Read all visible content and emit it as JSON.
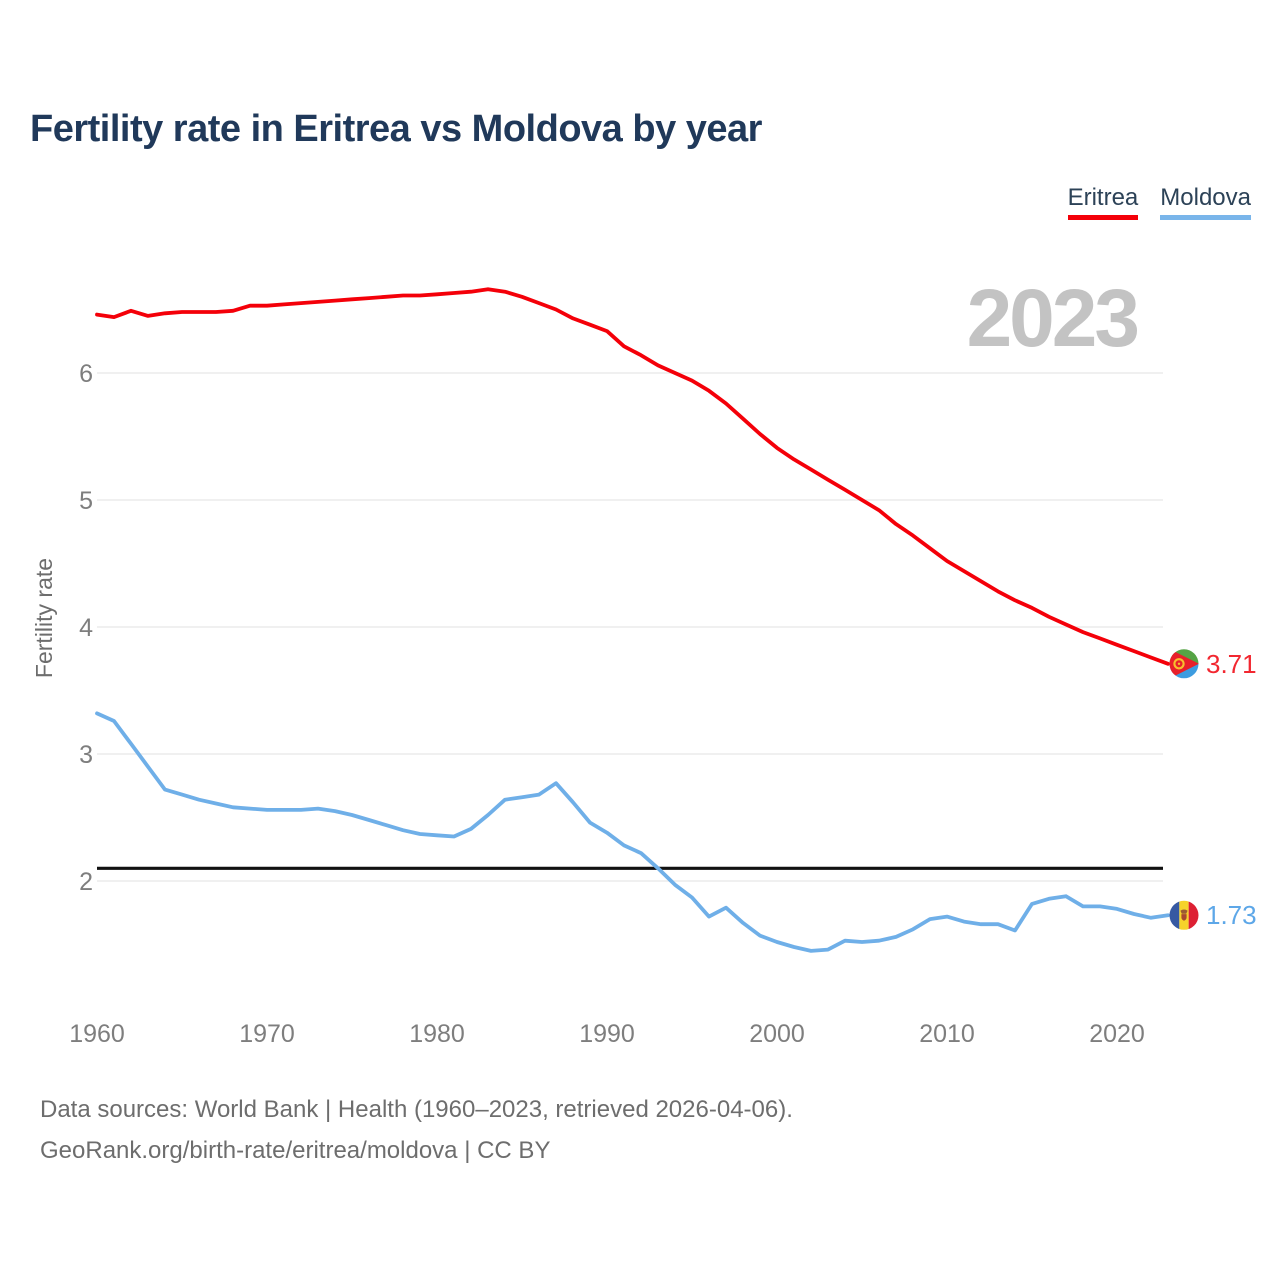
{
  "title": "Fertility rate in Eritrea vs Moldova by year",
  "watermark": "2023",
  "legend": {
    "items": [
      {
        "label": "Eritrea",
        "color": "#f40009"
      },
      {
        "label": "Moldova",
        "color": "#79b5ea"
      }
    ]
  },
  "footer": {
    "line1": "Data sources: World Bank | Health (1960–2023, retrieved 2026-04-06).",
    "line2": "GeoRank.org/birth-rate/eritrea/moldova | CC BY"
  },
  "chart_data": {
    "type": "line",
    "title": "Fertility rate in Eritrea vs Moldova by year",
    "xlabel": "",
    "ylabel": "Fertility rate",
    "x_range": [
      1960,
      2023
    ],
    "ylim": [
      1.3,
      6.9
    ],
    "yticks": [
      2,
      3,
      4,
      5,
      6
    ],
    "xticks": [
      1960,
      1970,
      1980,
      1990,
      2000,
      2010,
      2020
    ],
    "grid": "horizontal",
    "grid_color": "#ececec",
    "tick_color": "#7e7e7e",
    "reference_line": {
      "value": 2.1,
      "color": "#111111"
    },
    "series": [
      {
        "name": "Eritrea",
        "color": "#f40009",
        "label_color": "#f22730",
        "flag_icon": "eritrea-flag-icon",
        "end_label": "3.71",
        "end_value": 3.71,
        "years_start": 1960,
        "values": [
          6.46,
          6.44,
          6.49,
          6.45,
          6.47,
          6.48,
          6.48,
          6.48,
          6.49,
          6.53,
          6.53,
          6.54,
          6.55,
          6.56,
          6.57,
          6.58,
          6.59,
          6.6,
          6.61,
          6.61,
          6.62,
          6.63,
          6.64,
          6.66,
          6.64,
          6.6,
          6.55,
          6.5,
          6.43,
          6.38,
          6.33,
          6.21,
          6.14,
          6.06,
          6.0,
          5.94,
          5.86,
          5.76,
          5.64,
          5.52,
          5.41,
          5.32,
          5.24,
          5.16,
          5.08,
          5.0,
          4.92,
          4.81,
          4.72,
          4.62,
          4.52,
          4.44,
          4.36,
          4.28,
          4.21,
          4.15,
          4.08,
          4.02,
          3.96,
          3.91,
          3.86,
          3.81,
          3.76,
          3.71
        ]
      },
      {
        "name": "Moldova",
        "color": "#6fafe8",
        "label_color": "#5da7e8",
        "flag_icon": "moldova-flag-icon",
        "end_label": "1.73",
        "end_value": 1.73,
        "years_start": 1960,
        "values": [
          3.32,
          3.26,
          3.08,
          2.9,
          2.72,
          2.68,
          2.64,
          2.61,
          2.58,
          2.57,
          2.56,
          2.56,
          2.56,
          2.57,
          2.55,
          2.52,
          2.48,
          2.44,
          2.4,
          2.37,
          2.36,
          2.35,
          2.41,
          2.52,
          2.64,
          2.66,
          2.68,
          2.77,
          2.62,
          2.46,
          2.38,
          2.28,
          2.22,
          2.1,
          1.97,
          1.87,
          1.72,
          1.79,
          1.67,
          1.57,
          1.52,
          1.48,
          1.45,
          1.46,
          1.53,
          1.52,
          1.53,
          1.56,
          1.62,
          1.7,
          1.72,
          1.68,
          1.66,
          1.66,
          1.61,
          1.82,
          1.86,
          1.88,
          1.8,
          1.8,
          1.78,
          1.74,
          1.71,
          1.73
        ]
      }
    ]
  }
}
